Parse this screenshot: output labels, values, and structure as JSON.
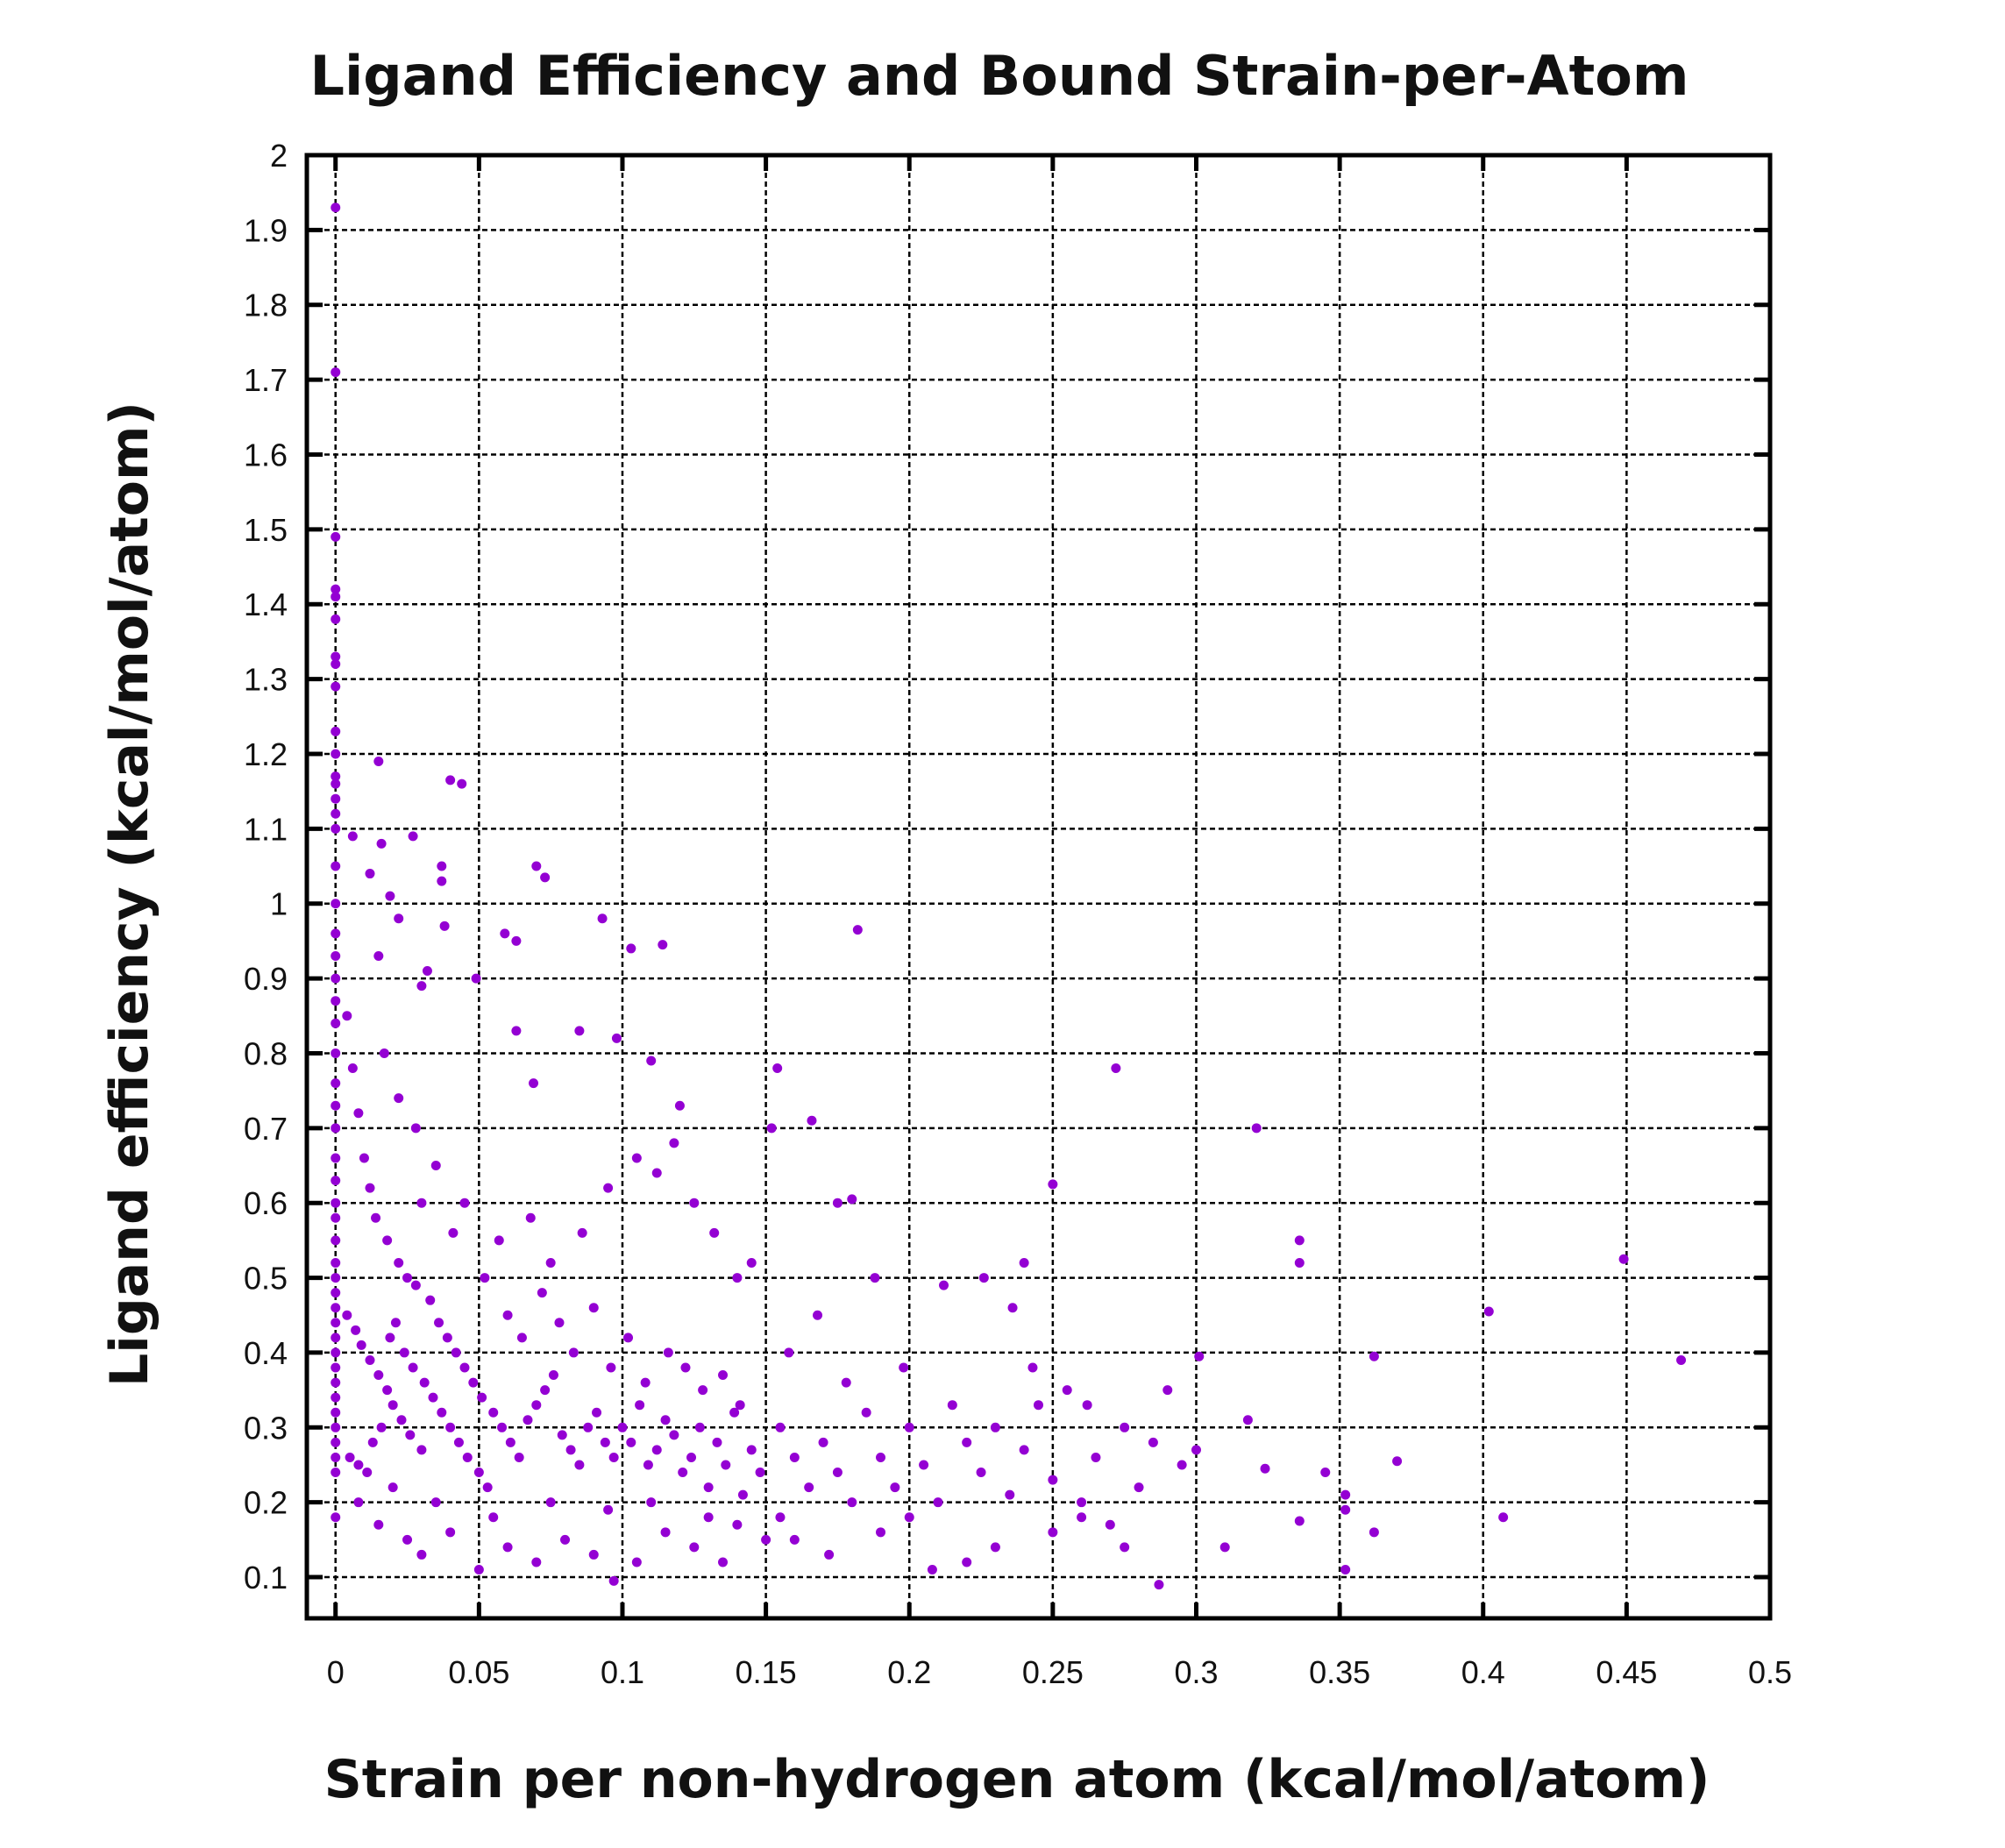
{
  "chart_data": {
    "type": "scatter",
    "title": "Ligand Efficiency and Bound Strain-per-Atom",
    "xlabel": "Strain per non-hydrogen atom (kcal/mol/atom)",
    "ylabel": "Ligand efficiency (kcal/mol/atom)",
    "xlim": [
      -0.01,
      0.5
    ],
    "ylim": [
      0.045,
      2
    ],
    "xticks": [
      0,
      0.05,
      0.1,
      0.15,
      0.2,
      0.25,
      0.3,
      0.35,
      0.4,
      0.45,
      0.5
    ],
    "xtick_labels": [
      "0",
      "0.05",
      "0.1",
      "0.15",
      "0.2",
      "0.25",
      "0.3",
      "0.35",
      "0.4",
      "0.45",
      "0.5"
    ],
    "yticks": [
      0.1,
      0.2,
      0.3,
      0.4,
      0.5,
      0.6,
      0.7,
      0.8,
      0.9,
      1,
      1.1,
      1.2,
      1.3,
      1.4,
      1.5,
      1.6,
      1.7,
      1.8,
      1.9,
      2
    ],
    "ytick_labels": [
      "0.1",
      "0.2",
      "0.3",
      "0.4",
      "0.5",
      "0.6",
      "0.7",
      "0.8",
      "0.9",
      "1",
      "1.1",
      "1.2",
      "1.3",
      "1.4",
      "1.5",
      "1.6",
      "1.7",
      "1.8",
      "1.9",
      "2"
    ],
    "grid": true,
    "legend": "none",
    "marker_color": "#9400D3",
    "points": [
      [
        0,
        1.93
      ],
      [
        0,
        1.71
      ],
      [
        0,
        1.49
      ],
      [
        0,
        1.42
      ],
      [
        0,
        1.41
      ],
      [
        0,
        1.38
      ],
      [
        0,
        1.33
      ],
      [
        0,
        1.32
      ],
      [
        0,
        1.29
      ],
      [
        0,
        1.23
      ],
      [
        0,
        1.2
      ],
      [
        0,
        1.17
      ],
      [
        0,
        1.16
      ],
      [
        0,
        1.14
      ],
      [
        0,
        1.12
      ],
      [
        0,
        1.1
      ],
      [
        0,
        1.05
      ],
      [
        0,
        1.0
      ],
      [
        0,
        0.96
      ],
      [
        0,
        0.93
      ],
      [
        0,
        0.9
      ],
      [
        0,
        0.87
      ],
      [
        0,
        0.84
      ],
      [
        0,
        0.8
      ],
      [
        0,
        0.76
      ],
      [
        0,
        0.73
      ],
      [
        0,
        0.7
      ],
      [
        0,
        0.66
      ],
      [
        0,
        0.63
      ],
      [
        0,
        0.6
      ],
      [
        0,
        0.58
      ],
      [
        0,
        0.55
      ],
      [
        0,
        0.52
      ],
      [
        0,
        0.5
      ],
      [
        0,
        0.48
      ],
      [
        0,
        0.46
      ],
      [
        0,
        0.44
      ],
      [
        0,
        0.42
      ],
      [
        0,
        0.4
      ],
      [
        0,
        0.38
      ],
      [
        0,
        0.36
      ],
      [
        0,
        0.34
      ],
      [
        0,
        0.32
      ],
      [
        0,
        0.3
      ],
      [
        0,
        0.28
      ],
      [
        0,
        0.26
      ],
      [
        0,
        0.24
      ],
      [
        0,
        0.18
      ],
      [
        0.015,
        1.19
      ],
      [
        0.04,
        1.165
      ],
      [
        0.044,
        1.16
      ],
      [
        0.027,
        1.09
      ],
      [
        0.016,
        1.08
      ],
      [
        0.006,
        1.09
      ],
      [
        0.037,
        1.05
      ],
      [
        0.037,
        1.03
      ],
      [
        0.07,
        1.05
      ],
      [
        0.073,
        1.035
      ],
      [
        0.012,
        1.04
      ],
      [
        0.019,
        1.01
      ],
      [
        0.022,
        0.98
      ],
      [
        0.038,
        0.97
      ],
      [
        0.093,
        0.98
      ],
      [
        0.182,
        0.965
      ],
      [
        0.059,
        0.96
      ],
      [
        0.063,
        0.95
      ],
      [
        0.103,
        0.94
      ],
      [
        0.114,
        0.945
      ],
      [
        0.015,
        0.93
      ],
      [
        0.049,
        0.9
      ],
      [
        0.032,
        0.91
      ],
      [
        0.03,
        0.89
      ],
      [
        0.085,
        0.83
      ],
      [
        0.063,
        0.83
      ],
      [
        0.098,
        0.82
      ],
      [
        0.11,
        0.79
      ],
      [
        0.154,
        0.78
      ],
      [
        0.272,
        0.78
      ],
      [
        0.069,
        0.76
      ],
      [
        0.12,
        0.73
      ],
      [
        0.166,
        0.71
      ],
      [
        0.321,
        0.7
      ],
      [
        0.152,
        0.7
      ],
      [
        0.25,
        0.625
      ],
      [
        0.18,
        0.605
      ],
      [
        0.175,
        0.6
      ],
      [
        0.336,
        0.55
      ],
      [
        0.336,
        0.52
      ],
      [
        0.449,
        0.525
      ],
      [
        0.402,
        0.455
      ],
      [
        0.469,
        0.39
      ],
      [
        0.362,
        0.395
      ],
      [
        0.301,
        0.395
      ],
      [
        0.37,
        0.255
      ],
      [
        0.345,
        0.24
      ],
      [
        0.324,
        0.245
      ],
      [
        0.407,
        0.18
      ],
      [
        0.352,
        0.21
      ],
      [
        0.352,
        0.19
      ],
      [
        0.362,
        0.16
      ],
      [
        0.352,
        0.11
      ],
      [
        0.336,
        0.175
      ],
      [
        0.287,
        0.09
      ],
      [
        0.097,
        0.095
      ],
      [
        0.208,
        0.11
      ],
      [
        0.05,
        0.11
      ],
      [
        0.318,
        0.31
      ],
      [
        0.31,
        0.14
      ],
      [
        0.3,
        0.27
      ],
      [
        0.004,
        0.85
      ],
      [
        0.006,
        0.78
      ],
      [
        0.008,
        0.72
      ],
      [
        0.01,
        0.66
      ],
      [
        0.012,
        0.62
      ],
      [
        0.014,
        0.58
      ],
      [
        0.018,
        0.55
      ],
      [
        0.022,
        0.52
      ],
      [
        0.025,
        0.5
      ],
      [
        0.028,
        0.49
      ],
      [
        0.033,
        0.47
      ],
      [
        0.004,
        0.45
      ],
      [
        0.007,
        0.43
      ],
      [
        0.009,
        0.41
      ],
      [
        0.012,
        0.39
      ],
      [
        0.015,
        0.37
      ],
      [
        0.018,
        0.35
      ],
      [
        0.02,
        0.33
      ],
      [
        0.023,
        0.31
      ],
      [
        0.026,
        0.29
      ],
      [
        0.03,
        0.27
      ],
      [
        0.005,
        0.26
      ],
      [
        0.008,
        0.25
      ],
      [
        0.011,
        0.24
      ],
      [
        0.013,
        0.28
      ],
      [
        0.016,
        0.3
      ],
      [
        0.019,
        0.42
      ],
      [
        0.021,
        0.44
      ],
      [
        0.024,
        0.4
      ],
      [
        0.027,
        0.38
      ],
      [
        0.031,
        0.36
      ],
      [
        0.034,
        0.34
      ],
      [
        0.037,
        0.32
      ],
      [
        0.04,
        0.3
      ],
      [
        0.043,
        0.28
      ],
      [
        0.046,
        0.26
      ],
      [
        0.05,
        0.24
      ],
      [
        0.053,
        0.22
      ],
      [
        0.036,
        0.44
      ],
      [
        0.039,
        0.42
      ],
      [
        0.042,
        0.4
      ],
      [
        0.045,
        0.38
      ],
      [
        0.048,
        0.36
      ],
      [
        0.051,
        0.34
      ],
      [
        0.055,
        0.32
      ],
      [
        0.058,
        0.3
      ],
      [
        0.061,
        0.28
      ],
      [
        0.064,
        0.26
      ],
      [
        0.067,
        0.31
      ],
      [
        0.07,
        0.33
      ],
      [
        0.073,
        0.35
      ],
      [
        0.076,
        0.37
      ],
      [
        0.079,
        0.29
      ],
      [
        0.082,
        0.27
      ],
      [
        0.085,
        0.25
      ],
      [
        0.088,
        0.3
      ],
      [
        0.091,
        0.32
      ],
      [
        0.094,
        0.28
      ],
      [
        0.097,
        0.26
      ],
      [
        0.1,
        0.3
      ],
      [
        0.103,
        0.28
      ],
      [
        0.106,
        0.33
      ],
      [
        0.109,
        0.25
      ],
      [
        0.112,
        0.27
      ],
      [
        0.115,
        0.31
      ],
      [
        0.118,
        0.29
      ],
      [
        0.121,
        0.24
      ],
      [
        0.124,
        0.26
      ],
      [
        0.127,
        0.3
      ],
      [
        0.13,
        0.22
      ],
      [
        0.133,
        0.28
      ],
      [
        0.136,
        0.25
      ],
      [
        0.139,
        0.32
      ],
      [
        0.142,
        0.21
      ],
      [
        0.145,
        0.27
      ],
      [
        0.148,
        0.24
      ],
      [
        0.06,
        0.45
      ],
      [
        0.065,
        0.42
      ],
      [
        0.072,
        0.48
      ],
      [
        0.078,
        0.44
      ],
      [
        0.083,
        0.4
      ],
      [
        0.09,
        0.46
      ],
      [
        0.096,
        0.38
      ],
      [
        0.102,
        0.42
      ],
      [
        0.108,
        0.36
      ],
      [
        0.116,
        0.4
      ],
      [
        0.122,
        0.38
      ],
      [
        0.128,
        0.35
      ],
      [
        0.135,
        0.37
      ],
      [
        0.141,
        0.33
      ],
      [
        0.052,
        0.5
      ],
      [
        0.057,
        0.55
      ],
      [
        0.068,
        0.58
      ],
      [
        0.075,
        0.52
      ],
      [
        0.086,
        0.56
      ],
      [
        0.095,
        0.62
      ],
      [
        0.105,
        0.66
      ],
      [
        0.112,
        0.64
      ],
      [
        0.118,
        0.68
      ],
      [
        0.125,
        0.6
      ],
      [
        0.132,
        0.56
      ],
      [
        0.14,
        0.5
      ],
      [
        0.145,
        0.52
      ],
      [
        0.045,
        0.6
      ],
      [
        0.035,
        0.65
      ],
      [
        0.028,
        0.7
      ],
      [
        0.022,
        0.74
      ],
      [
        0.017,
        0.8
      ],
      [
        0.041,
        0.56
      ],
      [
        0.03,
        0.6
      ],
      [
        0.155,
        0.3
      ],
      [
        0.16,
        0.26
      ],
      [
        0.165,
        0.22
      ],
      [
        0.17,
        0.28
      ],
      [
        0.175,
        0.24
      ],
      [
        0.18,
        0.2
      ],
      [
        0.185,
        0.32
      ],
      [
        0.19,
        0.26
      ],
      [
        0.195,
        0.22
      ],
      [
        0.2,
        0.3
      ],
      [
        0.205,
        0.25
      ],
      [
        0.21,
        0.2
      ],
      [
        0.215,
        0.33
      ],
      [
        0.22,
        0.28
      ],
      [
        0.225,
        0.24
      ],
      [
        0.23,
        0.3
      ],
      [
        0.235,
        0.21
      ],
      [
        0.24,
        0.27
      ],
      [
        0.245,
        0.33
      ],
      [
        0.25,
        0.23
      ],
      [
        0.255,
        0.35
      ],
      [
        0.26,
        0.2
      ],
      [
        0.265,
        0.26
      ],
      [
        0.27,
        0.17
      ],
      [
        0.275,
        0.3
      ],
      [
        0.28,
        0.22
      ],
      [
        0.285,
        0.28
      ],
      [
        0.29,
        0.35
      ],
      [
        0.295,
        0.25
      ],
      [
        0.158,
        0.4
      ],
      [
        0.168,
        0.45
      ],
      [
        0.178,
        0.36
      ],
      [
        0.188,
        0.5
      ],
      [
        0.198,
        0.38
      ],
      [
        0.212,
        0.49
      ],
      [
        0.226,
        0.5
      ],
      [
        0.236,
        0.46
      ],
      [
        0.24,
        0.52
      ],
      [
        0.243,
        0.38
      ],
      [
        0.262,
        0.33
      ],
      [
        0.275,
        0.14
      ],
      [
        0.16,
        0.15
      ],
      [
        0.172,
        0.13
      ],
      [
        0.19,
        0.16
      ],
      [
        0.22,
        0.12
      ],
      [
        0.23,
        0.14
      ],
      [
        0.25,
        0.16
      ],
      [
        0.26,
        0.18
      ],
      [
        0.2,
        0.18
      ],
      [
        0.155,
        0.18
      ],
      [
        0.008,
        0.2
      ],
      [
        0.015,
        0.17
      ],
      [
        0.025,
        0.15
      ],
      [
        0.03,
        0.13
      ],
      [
        0.04,
        0.16
      ],
      [
        0.06,
        0.14
      ],
      [
        0.07,
        0.12
      ],
      [
        0.08,
        0.15
      ],
      [
        0.09,
        0.13
      ],
      [
        0.105,
        0.12
      ],
      [
        0.115,
        0.16
      ],
      [
        0.125,
        0.14
      ],
      [
        0.135,
        0.12
      ],
      [
        0.14,
        0.17
      ],
      [
        0.02,
        0.22
      ],
      [
        0.035,
        0.2
      ],
      [
        0.055,
        0.18
      ],
      [
        0.075,
        0.2
      ],
      [
        0.095,
        0.19
      ],
      [
        0.11,
        0.2
      ],
      [
        0.13,
        0.18
      ],
      [
        0.15,
        0.15
      ]
    ]
  }
}
